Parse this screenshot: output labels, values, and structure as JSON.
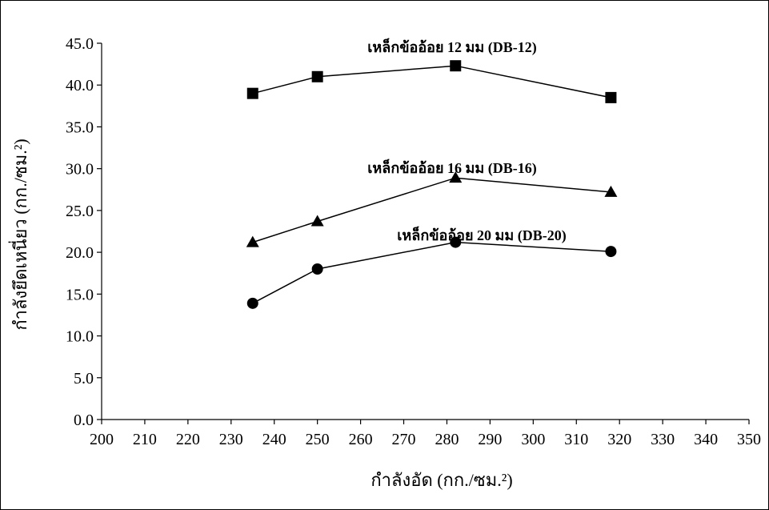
{
  "chart_data": {
    "type": "line",
    "xlabel": "กำลังอัด (กก./ซม.²)",
    "ylabel": "กำลังยึดเหนี่ยว (กก./ซม.²)",
    "xlim": [
      200,
      350
    ],
    "ylim": [
      0,
      45
    ],
    "x_ticks": [
      200,
      210,
      220,
      230,
      240,
      250,
      260,
      270,
      280,
      290,
      300,
      310,
      320,
      330,
      340,
      350
    ],
    "y_ticks": [
      "0.0",
      "5.0",
      "10.0",
      "15.0",
      "20.0",
      "25.0",
      "30.0",
      "35.0",
      "40.0",
      "45.0"
    ],
    "grid": false,
    "series": [
      {
        "name": "เหล็กข้ออ้อย 12 มม (DB-12)",
        "marker": "square",
        "x": [
          235,
          250,
          282,
          318
        ],
        "y": [
          39.0,
          41.0,
          42.3,
          38.5
        ]
      },
      {
        "name": "เหล็กข้ออ้อย 16 มม (DB-16)",
        "marker": "triangle",
        "x": [
          235,
          250,
          282,
          318
        ],
        "y": [
          21.2,
          23.7,
          28.9,
          27.2
        ]
      },
      {
        "name": "เหล็กข้ออ้อย 20 มม (DB-20)",
        "marker": "circle",
        "x": [
          235,
          250,
          282,
          318
        ],
        "y": [
          13.9,
          18.0,
          21.2,
          20.1
        ]
      }
    ]
  }
}
